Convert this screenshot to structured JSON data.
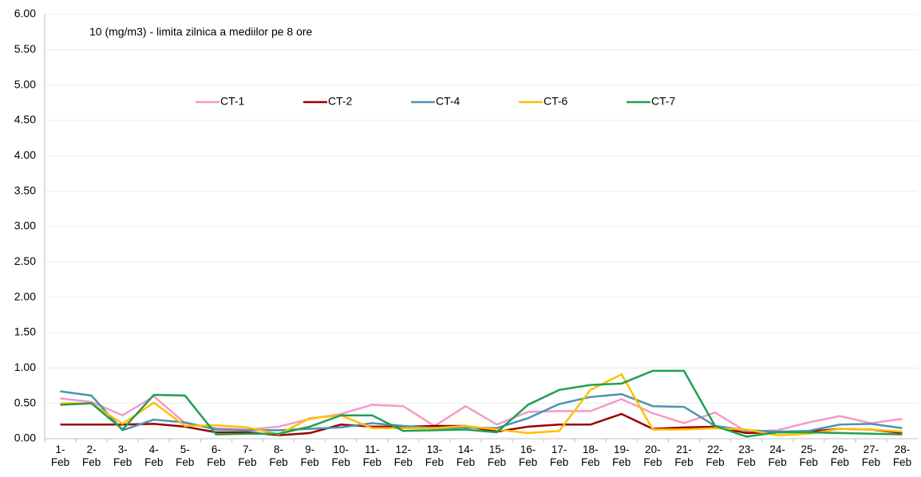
{
  "chart_data": {
    "type": "line",
    "annotation": "10 (mg/m3) - limita zilnica  a mediilor pe 8 ore",
    "categories": [
      "1-Feb",
      "2-Feb",
      "3-Feb",
      "4-Feb",
      "5-Feb",
      "6-Feb",
      "7-Feb",
      "8-Feb",
      "9-Feb",
      "10-Feb",
      "11-Feb",
      "12-Feb",
      "13-Feb",
      "14-Feb",
      "15-Feb",
      "16-Feb",
      "17-Feb",
      "18-Feb",
      "19-Feb",
      "20-Feb",
      "21-Feb",
      "22-Feb",
      "23-Feb",
      "24-Feb",
      "25-Feb",
      "26-Feb",
      "27-Feb",
      "28-Feb"
    ],
    "series": [
      {
        "name": "CT-1",
        "color": "#f49ac8",
        "values": [
          0.57,
          0.52,
          0.33,
          0.6,
          0.22,
          0.15,
          0.13,
          0.17,
          0.28,
          0.35,
          0.48,
          0.46,
          0.18,
          0.46,
          0.2,
          0.38,
          0.39,
          0.39,
          0.56,
          0.36,
          0.22,
          0.37,
          0.1,
          0.12,
          0.23,
          0.32,
          0.22,
          0.28
        ]
      },
      {
        "name": "CT-2",
        "color": "#990000",
        "values": [
          0.2,
          0.2,
          0.2,
          0.21,
          0.17,
          0.09,
          0.09,
          0.05,
          0.08,
          0.2,
          0.17,
          0.17,
          0.18,
          0.18,
          0.1,
          0.17,
          0.2,
          0.2,
          0.35,
          0.14,
          0.16,
          0.17,
          0.08,
          0.09,
          0.1,
          0.14,
          0.13,
          0.08
        ]
      },
      {
        "name": "CT-4",
        "color": "#4b93b1",
        "values": [
          0.67,
          0.61,
          0.12,
          0.27,
          0.23,
          0.13,
          0.12,
          0.12,
          0.14,
          0.16,
          0.22,
          0.18,
          0.15,
          0.16,
          0.15,
          0.29,
          0.49,
          0.59,
          0.63,
          0.46,
          0.45,
          0.18,
          0.12,
          0.1,
          0.11,
          0.2,
          0.21,
          0.15
        ]
      },
      {
        "name": "CT-6",
        "color": "#ffc000",
        "values": [
          0.5,
          0.5,
          0.21,
          0.51,
          0.18,
          0.19,
          0.16,
          0.06,
          0.29,
          0.33,
          0.15,
          0.15,
          0.15,
          0.18,
          0.13,
          0.08,
          0.11,
          0.69,
          0.91,
          0.13,
          0.13,
          0.15,
          0.13,
          0.05,
          0.07,
          0.14,
          0.13,
          0.1
        ]
      },
      {
        "name": "CT-7",
        "color": "#1fa04f",
        "values": [
          0.48,
          0.5,
          0.13,
          0.62,
          0.61,
          0.06,
          0.07,
          0.07,
          0.17,
          0.33,
          0.33,
          0.11,
          0.12,
          0.13,
          0.09,
          0.48,
          0.69,
          0.76,
          0.78,
          0.96,
          0.96,
          0.18,
          0.03,
          0.09,
          0.09,
          0.08,
          0.07,
          0.06
        ]
      }
    ],
    "ylim": [
      0,
      6
    ],
    "yticks": [
      {
        "value": 0,
        "label": "0.00"
      },
      {
        "value": 0.5,
        "label": "0.50"
      },
      {
        "value": 1,
        "label": "1.00"
      },
      {
        "value": 1.5,
        "label": "1.50"
      },
      {
        "value": 2,
        "label": "2.00"
      },
      {
        "value": 2.5,
        "label": "2.50"
      },
      {
        "value": 3,
        "label": "3.00"
      },
      {
        "value": 3.5,
        "label": "3.50"
      },
      {
        "value": 4,
        "label": "4.00"
      },
      {
        "value": 4.5,
        "label": "4.50"
      },
      {
        "value": 5,
        "label": "5.00"
      },
      {
        "value": 5.5,
        "label": "5.50"
      },
      {
        "value": 6,
        "label": "6.00"
      }
    ],
    "grid": true,
    "legend": "top"
  }
}
